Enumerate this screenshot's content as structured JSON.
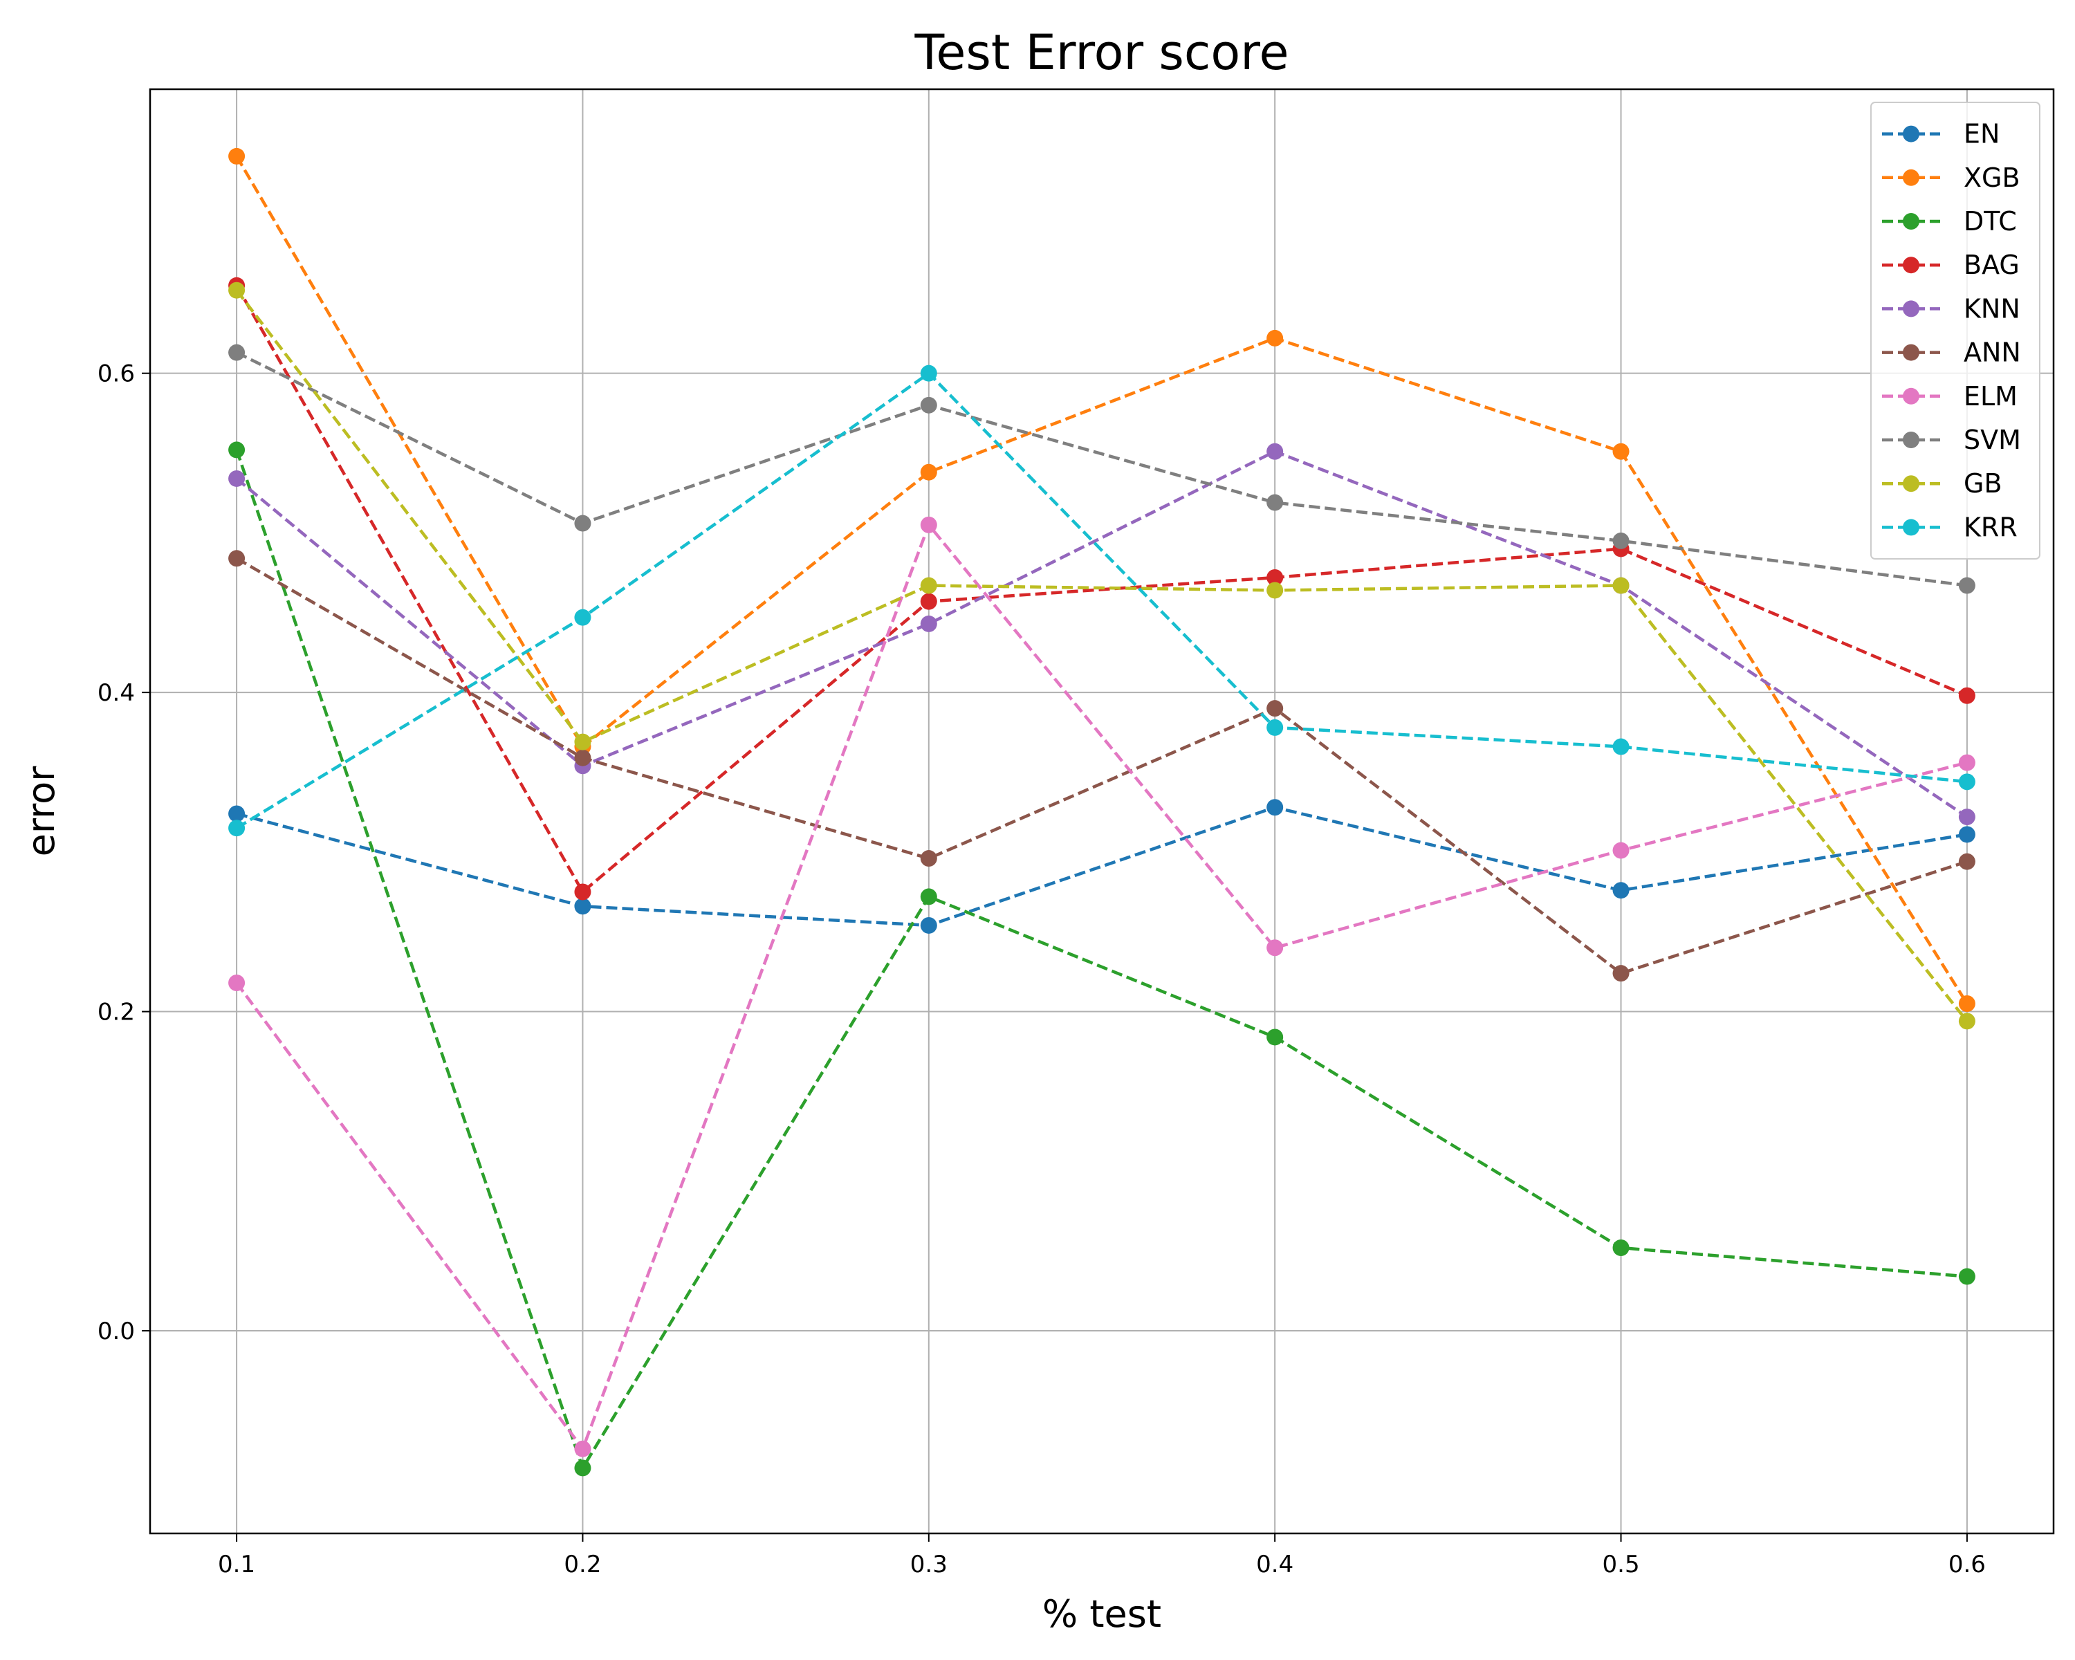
{
  "chart_data": {
    "type": "line",
    "title": "Test Error score",
    "xlabel": "% test",
    "ylabel": "error",
    "x": [
      0.1,
      0.2,
      0.3,
      0.4,
      0.5,
      0.6
    ],
    "x_tick_labels": [
      "0.1",
      "0.2",
      "0.3",
      "0.4",
      "0.5",
      "0.6"
    ],
    "y_ticks": [
      0.0,
      0.2,
      0.4,
      0.6
    ],
    "y_tick_labels": [
      "0.0",
      "0.2",
      "0.4",
      "0.6"
    ],
    "xlim": [
      0.075,
      0.625
    ],
    "ylim": [
      -0.127,
      0.778
    ],
    "grid": true,
    "legend_position": "top-right",
    "line_style": "dashed",
    "marker": "circle",
    "series": [
      {
        "name": "EN",
        "color": "#1f77b4",
        "values": [
          0.324,
          0.266,
          0.254,
          0.328,
          0.276,
          0.311
        ]
      },
      {
        "name": "XGB",
        "color": "#ff7f0e",
        "values": [
          0.736,
          0.366,
          0.538,
          0.622,
          0.551,
          0.205
        ]
      },
      {
        "name": "DTC",
        "color": "#2ca02c",
        "values": [
          0.552,
          -0.086,
          0.272,
          0.184,
          0.052,
          0.034
        ]
      },
      {
        "name": "BAG",
        "color": "#d62728",
        "values": [
          0.655,
          0.275,
          0.457,
          0.472,
          0.49,
          0.398
        ]
      },
      {
        "name": "KNN",
        "color": "#9467bd",
        "values": [
          0.534,
          0.354,
          0.443,
          0.551,
          0.467,
          0.322
        ]
      },
      {
        "name": "ANN",
        "color": "#8c564b",
        "values": [
          0.484,
          0.359,
          0.296,
          0.39,
          0.224,
          0.294
        ]
      },
      {
        "name": "ELM",
        "color": "#e377c2",
        "values": [
          0.218,
          -0.074,
          0.505,
          0.24,
          0.301,
          0.356
        ]
      },
      {
        "name": "SVM",
        "color": "#7f7f7f",
        "values": [
          0.613,
          0.506,
          0.58,
          0.519,
          0.495,
          0.467
        ]
      },
      {
        "name": "GB",
        "color": "#bcbd22",
        "values": [
          0.652,
          0.369,
          0.467,
          0.464,
          0.467,
          0.194
        ]
      },
      {
        "name": "KRR",
        "color": "#17becf",
        "values": [
          0.315,
          0.447,
          0.6,
          0.378,
          0.366,
          0.344
        ]
      }
    ]
  }
}
